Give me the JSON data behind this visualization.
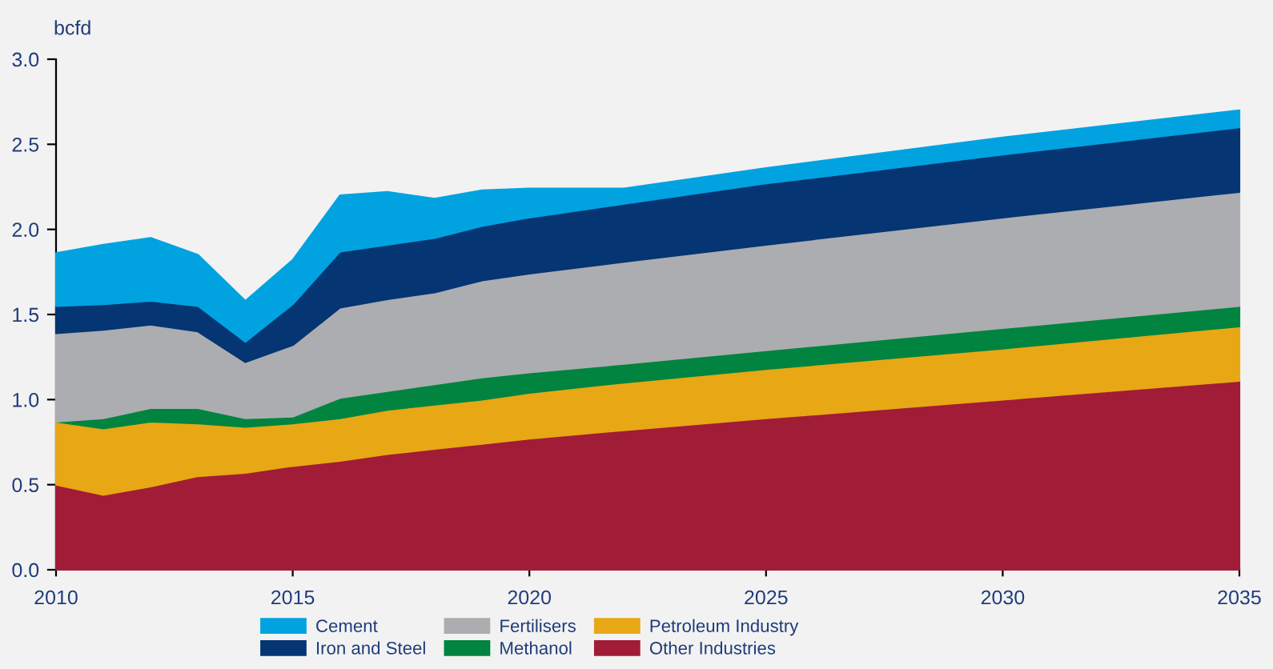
{
  "chart_data": {
    "type": "area",
    "stacked": true,
    "ylabel": "bcfd",
    "x": [
      2010,
      2011,
      2012,
      2013,
      2014,
      2015,
      2016,
      2017,
      2018,
      2019,
      2020,
      2022,
      2025,
      2030,
      2035
    ],
    "series": [
      {
        "name": "Other Industries",
        "color": "#a11c36",
        "values": [
          0.5,
          0.44,
          0.49,
          0.55,
          0.57,
          0.61,
          0.64,
          0.68,
          0.71,
          0.74,
          0.77,
          0.82,
          0.89,
          1.0,
          1.11
        ]
      },
      {
        "name": "Petroleum Industry",
        "color": "#e8a715",
        "values": [
          0.37,
          0.39,
          0.38,
          0.31,
          0.27,
          0.25,
          0.25,
          0.26,
          0.26,
          0.26,
          0.27,
          0.28,
          0.29,
          0.3,
          0.32
        ]
      },
      {
        "name": "Methanol",
        "color": "#00843f",
        "values": [
          0.0,
          0.06,
          0.08,
          0.09,
          0.05,
          0.04,
          0.12,
          0.11,
          0.12,
          0.13,
          0.12,
          0.11,
          0.11,
          0.12,
          0.12
        ]
      },
      {
        "name": "Fertilisers",
        "color": "#acadb0",
        "values": [
          0.52,
          0.52,
          0.49,
          0.45,
          0.33,
          0.42,
          0.53,
          0.54,
          0.54,
          0.57,
          0.58,
          0.6,
          0.62,
          0.65,
          0.67
        ]
      },
      {
        "name": "Iron and Steel",
        "color": "#063574",
        "values": [
          0.16,
          0.15,
          0.14,
          0.15,
          0.12,
          0.24,
          0.33,
          0.32,
          0.32,
          0.32,
          0.33,
          0.34,
          0.36,
          0.37,
          0.38
        ]
      },
      {
        "name": "Cement",
        "color": "#00a3e0",
        "values": [
          0.31,
          0.35,
          0.37,
          0.3,
          0.24,
          0.26,
          0.33,
          0.31,
          0.23,
          0.21,
          0.17,
          0.09,
          0.09,
          0.1,
          0.1
        ]
      }
    ],
    "xlim": [
      2010,
      2035
    ],
    "xticks": [
      2010,
      2015,
      2020,
      2025,
      2030,
      2035
    ],
    "ylim": [
      0,
      3
    ],
    "yticks": [
      {
        "value": 0,
        "label": "0.0"
      },
      {
        "value": 0.5,
        "label": "0.5"
      },
      {
        "value": 1,
        "label": "1.0"
      },
      {
        "value": 1.5,
        "label": "1.5"
      },
      {
        "value": 2,
        "label": "2.0"
      },
      {
        "value": 2.5,
        "label": "2.5"
      },
      {
        "value": 3,
        "label": "3.0"
      }
    ],
    "grid": false,
    "legend": "bottom"
  }
}
